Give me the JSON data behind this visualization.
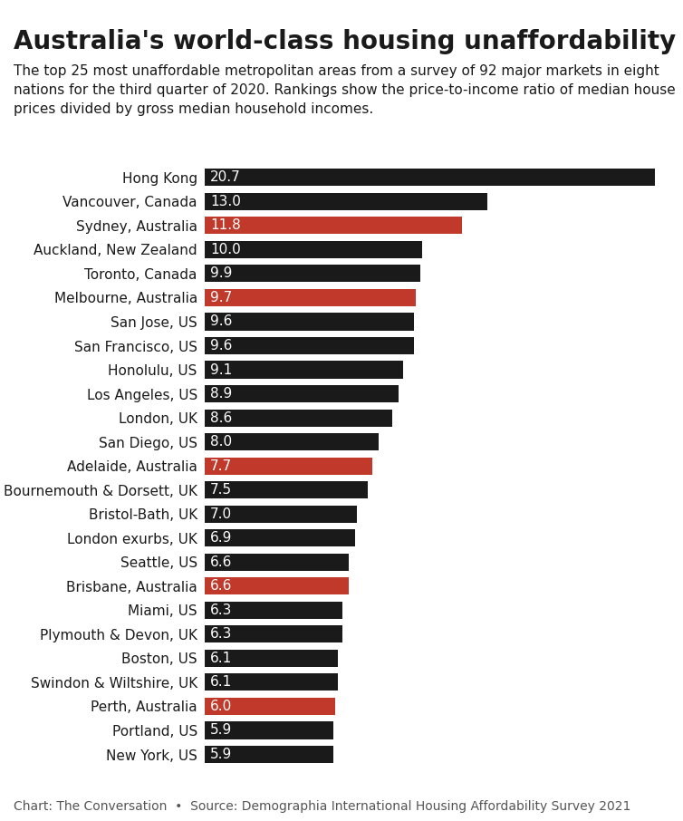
{
  "title": "Australia's world-class housing unaffordability",
  "subtitle": "The top 25 most unaffordable metropolitan areas from a survey of 92 major markets in eight\nnations for the third quarter of 2020. Rankings show the price-to-income ratio of median house\nprices divided by gross median household incomes.",
  "footer": "Chart: The Conversation  •  Source: Demographia International Housing Affordability Survey 2021",
  "categories": [
    "Hong Kong",
    "Vancouver, Canada",
    "Sydney, Australia",
    "Auckland, New Zealand",
    "Toronto, Canada",
    "Melbourne, Australia",
    "San Jose, US",
    "San Francisco, US",
    "Honolulu, US",
    "Los Angeles, US",
    "London, UK",
    "San Diego, US",
    "Adelaide, Australia",
    "Bournemouth & Dorsett, UK",
    "Bristol-Bath, UK",
    "London exurbs, UK",
    "Seattle, US",
    "Brisbane, Australia",
    "Miami, US",
    "Plymouth & Devon, UK",
    "Boston, US",
    "Swindon & Wiltshire, UK",
    "Perth, Australia",
    "Portland, US",
    "New York, US"
  ],
  "values": [
    20.7,
    13.0,
    11.8,
    10.0,
    9.9,
    9.7,
    9.6,
    9.6,
    9.1,
    8.9,
    8.6,
    8.0,
    7.7,
    7.5,
    7.0,
    6.9,
    6.6,
    6.6,
    6.3,
    6.3,
    6.1,
    6.1,
    6.0,
    5.9,
    5.9
  ],
  "highlight": [
    false,
    false,
    true,
    false,
    false,
    true,
    false,
    false,
    false,
    false,
    false,
    false,
    true,
    false,
    false,
    false,
    false,
    true,
    false,
    false,
    false,
    false,
    true,
    false,
    false
  ],
  "bar_color_normal": "#1a1a1a",
  "bar_color_highlight": "#c0392b",
  "background_color": "#ffffff",
  "title_fontsize": 20,
  "subtitle_fontsize": 11,
  "footer_fontsize": 10,
  "value_fontsize": 11,
  "category_fontsize": 11,
  "bar_height": 0.72
}
